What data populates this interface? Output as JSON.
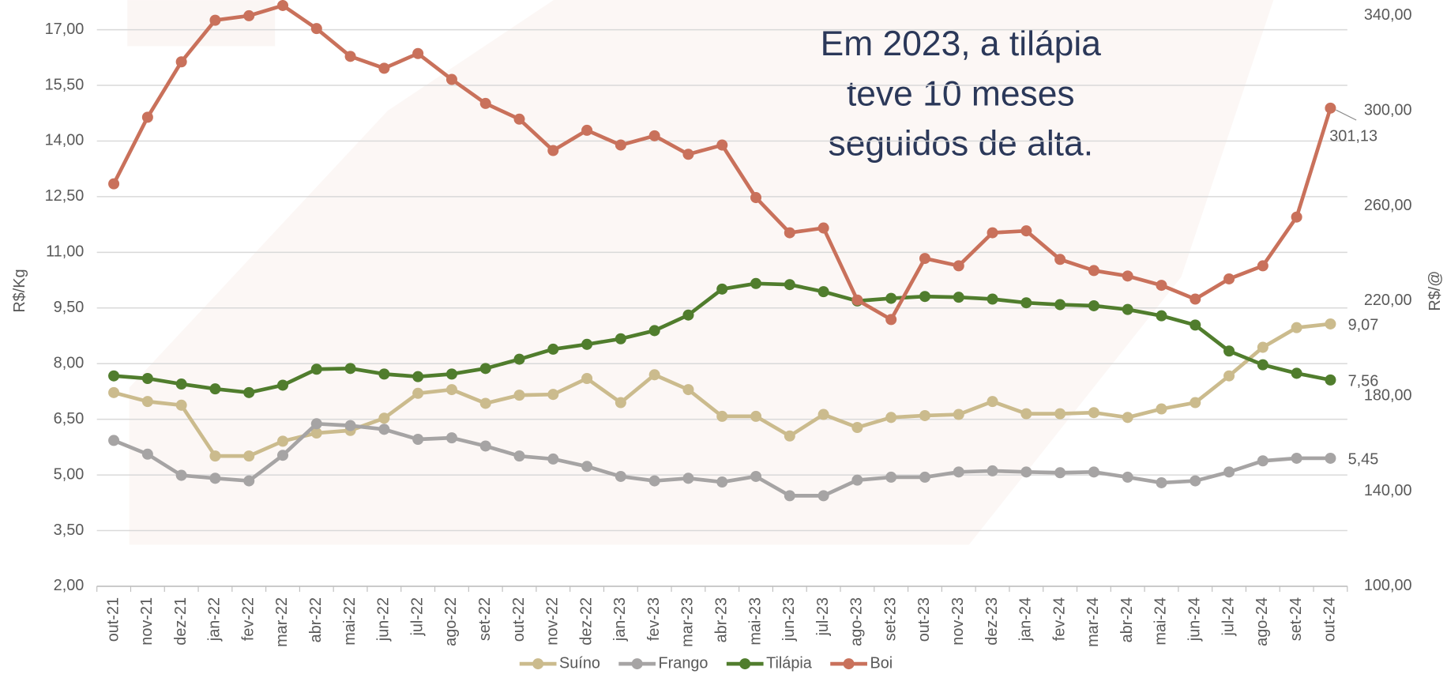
{
  "chart_data": {
    "type": "line",
    "annotation": [
      "Em 2023, a tilápia",
      "teve 10 meses",
      "seguidos de alta."
    ],
    "ylabel": "R$/Kg",
    "y2label": "R$/@",
    "categories": [
      "out-21",
      "nov-21",
      "dez-21",
      "jan-22",
      "fev-22",
      "mar-22",
      "abr-22",
      "mai-22",
      "jun-22",
      "jul-22",
      "ago-22",
      "set-22",
      "out-22",
      "nov-22",
      "dez-22",
      "jan-23",
      "fev-23",
      "mar-23",
      "abr-23",
      "mai-23",
      "jun-23",
      "jul-23",
      "ago-23",
      "set-23",
      "out-23",
      "nov-23",
      "dez-23",
      "jan-24",
      "fev-24",
      "mar-24",
      "abr-24",
      "mai-24",
      "jun-24",
      "jul-24",
      "ago-24",
      "set-24",
      "out-24"
    ],
    "series": [
      {
        "name": "Suíno",
        "color": "#cbbb8d",
        "values": [
          7.22,
          6.98,
          6.88,
          5.51,
          5.51,
          5.91,
          6.13,
          6.2,
          6.53,
          7.2,
          7.3,
          6.93,
          7.15,
          7.17,
          7.6,
          6.95,
          7.7,
          7.3,
          6.58,
          6.58,
          6.05,
          6.63,
          6.28,
          6.55,
          6.6,
          6.63,
          6.98,
          6.65,
          6.65,
          6.68,
          6.55,
          6.78,
          6.95,
          7.67,
          8.44,
          8.97,
          9.07
        ],
        "value_labels": [
          null,
          null,
          null,
          null,
          null,
          null,
          null,
          null,
          null,
          null,
          null,
          null,
          null,
          null,
          null,
          null,
          null,
          null,
          null,
          null,
          null,
          null,
          null,
          null,
          null,
          null,
          null,
          null,
          null,
          null,
          null,
          null,
          null,
          null,
          null,
          null,
          "9,07"
        ]
      },
      {
        "name": "Frango",
        "color": "#a6a4a4",
        "values": [
          5.93,
          5.56,
          4.99,
          4.91,
          4.84,
          5.53,
          6.38,
          6.33,
          6.23,
          5.96,
          6.0,
          5.78,
          5.51,
          5.43,
          5.23,
          4.96,
          4.84,
          4.91,
          4.81,
          4.96,
          4.44,
          4.44,
          4.86,
          4.94,
          4.94,
          5.08,
          5.11,
          5.08,
          5.06,
          5.08,
          4.94,
          4.79,
          4.84,
          5.08,
          5.38,
          5.45,
          5.45
        ],
        "value_labels": [
          null,
          null,
          null,
          null,
          null,
          null,
          null,
          null,
          null,
          null,
          null,
          null,
          null,
          null,
          null,
          null,
          null,
          null,
          null,
          null,
          null,
          null,
          null,
          null,
          null,
          null,
          null,
          null,
          null,
          null,
          null,
          null,
          null,
          null,
          null,
          null,
          "5,45"
        ]
      },
      {
        "name": "Tilápia",
        "color": "#507d2d",
        "values": [
          7.67,
          7.6,
          7.45,
          7.32,
          7.22,
          7.42,
          7.85,
          7.87,
          7.72,
          7.65,
          7.72,
          7.87,
          8.12,
          8.39,
          8.52,
          8.67,
          8.89,
          9.31,
          10.01,
          10.16,
          10.13,
          9.94,
          9.69,
          9.76,
          9.81,
          9.79,
          9.74,
          9.64,
          9.59,
          9.56,
          9.46,
          9.29,
          9.04,
          8.34,
          7.97,
          7.74,
          7.56
        ],
        "value_labels": [
          null,
          null,
          null,
          null,
          null,
          null,
          null,
          null,
          null,
          null,
          null,
          null,
          null,
          null,
          null,
          null,
          null,
          null,
          null,
          null,
          null,
          null,
          null,
          null,
          null,
          null,
          null,
          null,
          null,
          null,
          null,
          null,
          null,
          null,
          null,
          null,
          "7,56"
        ]
      },
      {
        "name": "Boi",
        "color": "#c9715b",
        "axis": "y2",
        "values": [
          269.3,
          297.3,
          320.6,
          338.1,
          340.0,
          344.3,
          334.6,
          322.9,
          317.9,
          324.1,
          313.2,
          303.1,
          296.5,
          283.3,
          291.8,
          285.6,
          289.5,
          281.7,
          285.6,
          263.5,
          248.7,
          250.7,
          220.4,
          212.2,
          237.9,
          234.8,
          248.7,
          249.5,
          237.5,
          232.8,
          230.5,
          226.6,
          220.8,
          229.3,
          234.8,
          255.3,
          301.13
        ],
        "value_labels": [
          null,
          null,
          null,
          null,
          null,
          null,
          null,
          null,
          null,
          null,
          null,
          null,
          null,
          null,
          null,
          null,
          null,
          null,
          null,
          null,
          null,
          null,
          null,
          null,
          null,
          null,
          null,
          null,
          null,
          null,
          null,
          null,
          null,
          null,
          null,
          null,
          "301,13"
        ]
      }
    ],
    "ylim": [
      2,
      17.8
    ],
    "yticks": [
      {
        "value": 2,
        "label": "2,00"
      },
      {
        "value": 3.5,
        "label": "3,50"
      },
      {
        "value": 5,
        "label": "5,00"
      },
      {
        "value": 6.5,
        "label": "6,50"
      },
      {
        "value": 8,
        "label": "8,00"
      },
      {
        "value": 9.5,
        "label": "9,50"
      },
      {
        "value": 11,
        "label": "11,00"
      },
      {
        "value": 12.5,
        "label": "12,50"
      },
      {
        "value": 14,
        "label": "14,00"
      },
      {
        "value": 15.5,
        "label": "15,50"
      },
      {
        "value": 17,
        "label": "17,00"
      }
    ],
    "y2lim": [
      100,
      346.6
    ],
    "y2ticks": [
      {
        "value": 100,
        "label": "100,00"
      },
      {
        "value": 140,
        "label": "140,00"
      },
      {
        "value": 180,
        "label": "180,00"
      },
      {
        "value": 220,
        "label": "220,00"
      },
      {
        "value": 260,
        "label": "260,00"
      },
      {
        "value": 300,
        "label": "300,00"
      },
      {
        "value": 340,
        "label": "340,00"
      }
    ],
    "grid": true,
    "legend": "bottom"
  }
}
